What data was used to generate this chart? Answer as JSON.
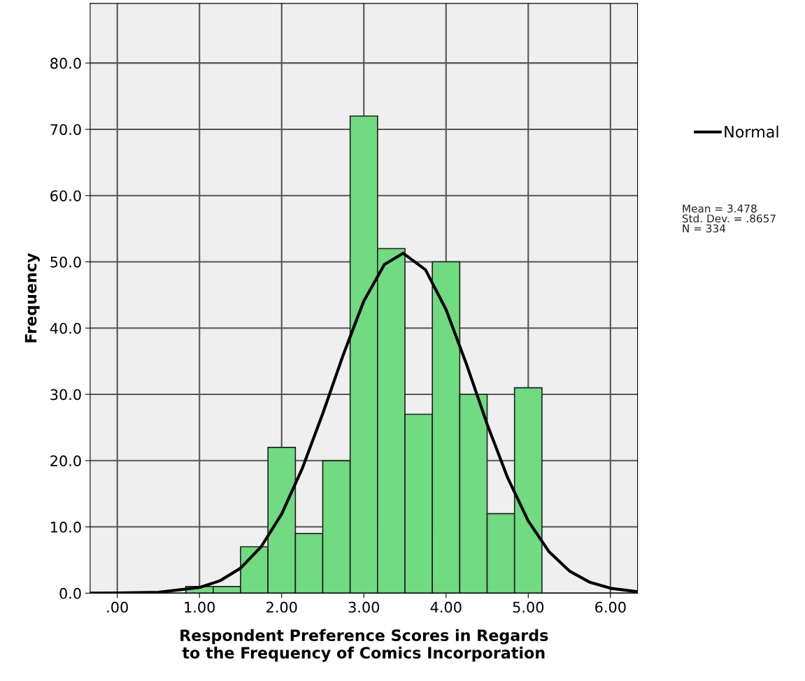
{
  "chart_data": {
    "type": "histogram",
    "xlabel": "Respondent Preference Scores in Regards\nto the Frequency of Comics Incorporation",
    "ylabel": "Frequency",
    "bins": [
      0.8333,
      1.1667,
      1.5,
      1.8333,
      2.1667,
      2.5,
      2.8333,
      3.1667,
      3.5,
      3.8333,
      4.1667,
      4.5,
      4.8333,
      5.1667
    ],
    "values": [
      1,
      1,
      7,
      22,
      9,
      20,
      72,
      52,
      27,
      50,
      30,
      12,
      31
    ],
    "color": "#70db80",
    "series": [
      {
        "name": "Normal",
        "type": "line",
        "color": "#000000",
        "x": [
          -0.33,
          0.0,
          0.5,
          1.0,
          1.25,
          1.5,
          1.75,
          2.0,
          2.25,
          2.5,
          2.75,
          3.0,
          3.25,
          3.478,
          3.75,
          4.0,
          4.25,
          4.5,
          4.75,
          5.0,
          5.25,
          5.5,
          5.75,
          6.0,
          6.33
        ],
        "values": [
          0.0,
          0.02,
          0.14,
          0.85,
          1.87,
          3.77,
          7.0,
          11.95,
          18.8,
          27.1,
          36.0,
          44.1,
          49.6,
          51.3,
          48.8,
          42.8,
          34.5,
          25.5,
          17.4,
          10.9,
          6.3,
          3.35,
          1.64,
          0.74,
          0.22
        ]
      }
    ],
    "annotations": [
      "Mean = 3.478\nStd. Dev. = .8657\nN = 334"
    ],
    "xlim": [
      -0.33,
      6.33
    ],
    "ylim": [
      0,
      89
    ],
    "xticks": [
      {
        "value": 0,
        "label": ".00"
      },
      {
        "value": 1,
        "label": "1.00"
      },
      {
        "value": 2,
        "label": "2.00"
      },
      {
        "value": 3,
        "label": "3.00"
      },
      {
        "value": 4,
        "label": "4.00"
      },
      {
        "value": 5,
        "label": "5.00"
      },
      {
        "value": 6,
        "label": "6.00"
      }
    ],
    "yticks": [
      {
        "value": 0,
        "label": "0.0"
      },
      {
        "value": 10,
        "label": "10.0"
      },
      {
        "value": 20,
        "label": "20.0"
      },
      {
        "value": 30,
        "label": "30.0"
      },
      {
        "value": 40,
        "label": "40.0"
      },
      {
        "value": 50,
        "label": "50.0"
      },
      {
        "value": 60,
        "label": "60.0"
      },
      {
        "value": 70,
        "label": "70.0"
      },
      {
        "value": 80,
        "label": "80.0"
      }
    ],
    "grid": true,
    "legend": "right"
  }
}
